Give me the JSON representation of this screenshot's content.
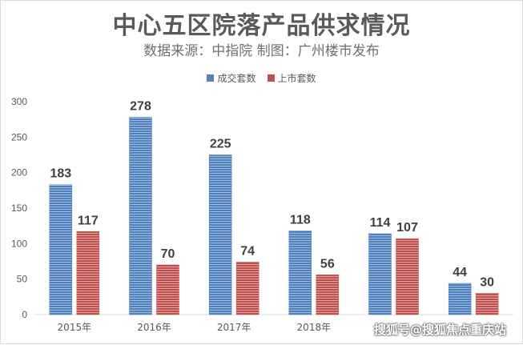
{
  "title": "中心五区院落产品供求情况",
  "subtitle": "数据来源：中指院  制图：广州楼市发布",
  "watermark": "搜狐号@搜狐焦点重庆站",
  "legend": {
    "items": [
      {
        "label": "成交套数",
        "color": "#4f81bd"
      },
      {
        "label": "上市套数",
        "color": "#c0504d"
      }
    ]
  },
  "chart_data": {
    "type": "bar",
    "categories": [
      "2015年",
      "2016年",
      "2017年",
      "2018年",
      "",
      ""
    ],
    "series": [
      {
        "name": "成交套数",
        "values": [
          183,
          278,
          225,
          118,
          114,
          44
        ],
        "color": "#4f81bd"
      },
      {
        "name": "上市套数",
        "values": [
          117,
          70,
          74,
          56,
          107,
          30
        ],
        "color": "#c0504d"
      }
    ],
    "ylim": [
      0,
      300
    ],
    "yticks": [
      0,
      50,
      100,
      150,
      200,
      250,
      300
    ],
    "grid": false,
    "legend_position": "top"
  }
}
